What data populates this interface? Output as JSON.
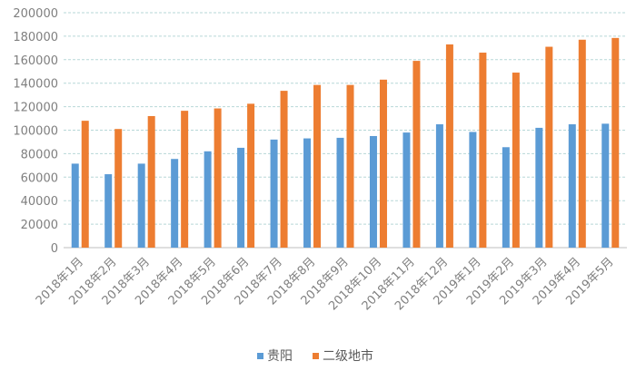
{
  "chart_data": {
    "type": "bar",
    "categories": [
      "2018年1月",
      "2018年2月",
      "2018年3月",
      "2018年4月",
      "2018年5月",
      "2018年6月",
      "2018年7月",
      "2018年8月",
      "2018年9月",
      "2018年10月",
      "2018年11月",
      "2018年12月",
      "2019年1月",
      "2019年2月",
      "2019年3月",
      "2019年4月",
      "2019年5月"
    ],
    "series": [
      {
        "name": "贵阳",
        "color": "#5b9bd5",
        "values": [
          71500,
          62500,
          71500,
          75500,
          82000,
          85000,
          92000,
          93000,
          93500,
          95000,
          98000,
          105000,
          98500,
          85500,
          102000,
          105000,
          105500
        ]
      },
      {
        "name": "二级地市",
        "color": "#ed7d31",
        "values": [
          108000,
          101000,
          112000,
          116500,
          118500,
          122500,
          133500,
          138500,
          138500,
          143000,
          159000,
          173000,
          166000,
          149000,
          171000,
          177000,
          178500
        ]
      }
    ],
    "yticks": [
      0,
      20000,
      40000,
      60000,
      80000,
      100000,
      120000,
      140000,
      160000,
      180000,
      200000
    ],
    "ylim": [
      0,
      200000
    ],
    "grid": true,
    "legend": "bottom"
  }
}
